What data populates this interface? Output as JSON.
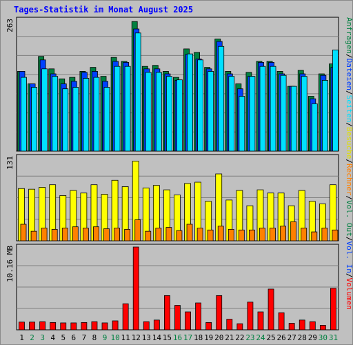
{
  "title": "Tages-Statistik im Monat August 2025",
  "colors": {
    "hits": "#008040",
    "files": "#0040ff",
    "pages": "#00e0ff",
    "visits": "#ffff00",
    "sites": "#ff8000",
    "kbytes": "#ff0000",
    "weekend_day": "#008040",
    "weekday": "#000000",
    "panel_bg": "#c0c0c0"
  },
  "chart_data": [
    {
      "type": "bar",
      "panel": "top",
      "axis_max_label": "263",
      "ylim": [
        0,
        263
      ],
      "categories": [
        "1",
        "2",
        "3",
        "4",
        "5",
        "6",
        "7",
        "8",
        "9",
        "10",
        "11",
        "12",
        "13",
        "14",
        "15",
        "16",
        "17",
        "18",
        "19",
        "20",
        "21",
        "22",
        "23",
        "24",
        "25",
        "26",
        "27",
        "28",
        "29",
        "30",
        "31"
      ],
      "weekend": [
        false,
        true,
        true,
        false,
        false,
        false,
        false,
        false,
        true,
        true,
        false,
        false,
        false,
        false,
        false,
        true,
        true,
        false,
        false,
        false,
        false,
        false,
        true,
        true,
        false,
        false,
        false,
        false,
        false,
        true,
        true
      ],
      "series": [
        {
          "name": "Anfragen",
          "key": "hits",
          "values": [
            160,
            135,
            190,
            165,
            145,
            148,
            160,
            168,
            150,
            188,
            180,
            260,
            170,
            172,
            160,
            148,
            205,
            198,
            168,
            225,
            160,
            135,
            158,
            180,
            180,
            160,
            130,
            162,
            110,
            155,
            175
          ]
        },
        {
          "name": "Dateien",
          "key": "files",
          "values": [
            160,
            135,
            183,
            155,
            135,
            140,
            158,
            160,
            140,
            180,
            178,
            245,
            165,
            165,
            155,
            142,
            194,
            185,
            165,
            220,
            155,
            125,
            150,
            178,
            178,
            155,
            130,
            155,
            105,
            152,
            168
          ]
        },
        {
          "name": "Seiten",
          "key": "pages",
          "values": [
            148,
            128,
            165,
            150,
            125,
            128,
            146,
            148,
            128,
            170,
            170,
            237,
            158,
            158,
            150,
            143,
            195,
            183,
            160,
            210,
            150,
            110,
            150,
            170,
            170,
            152,
            130,
            150,
            95,
            142,
            203
          ]
        }
      ]
    },
    {
      "type": "bar",
      "panel": "middle",
      "axis_max_label": "131",
      "ylim": [
        0,
        131
      ],
      "series": [
        {
          "name": "Besuche",
          "key": "visits",
          "values": [
            82,
            81,
            84,
            88,
            71,
            79,
            75,
            88,
            73,
            95,
            85,
            125,
            83,
            87,
            80,
            72,
            90,
            92,
            62,
            105,
            64,
            79,
            55,
            80,
            75,
            75,
            55,
            79,
            62,
            58,
            88
          ]
        },
        {
          "name": "Rechner",
          "key": "sites",
          "values": [
            26,
            15,
            20,
            18,
            20,
            22,
            20,
            22,
            19,
            20,
            18,
            33,
            15,
            20,
            21,
            16,
            26,
            20,
            17,
            23,
            18,
            17,
            17,
            20,
            20,
            23,
            30,
            20,
            14,
            20,
            17
          ]
        }
      ]
    },
    {
      "type": "bar",
      "panel": "bottom",
      "axis_max_label": "10.16 MB",
      "ylim": [
        0,
        10.16
      ],
      "series": [
        {
          "name": "Volumen",
          "key": "kbytes",
          "values": [
            0.95,
            0.95,
            1.0,
            0.9,
            0.85,
            0.85,
            0.9,
            1.0,
            0.85,
            1.1,
            3.2,
            10.16,
            1.0,
            1.2,
            4.2,
            3.0,
            2.2,
            3.3,
            0.9,
            4.2,
            1.3,
            0.75,
            3.4,
            2.2,
            5.0,
            2.1,
            0.8,
            1.2,
            1.0,
            0.55,
            5.1
          ]
        }
      ]
    }
  ],
  "right_legend": {
    "top": [
      "Anfragen",
      "/",
      "Dateien",
      "/",
      "Seiten",
      "/",
      "Besuche",
      "/",
      "Rechner",
      "/",
      "Vol. Out",
      "/",
      "Vol. In",
      "/",
      "Volumen"
    ]
  }
}
